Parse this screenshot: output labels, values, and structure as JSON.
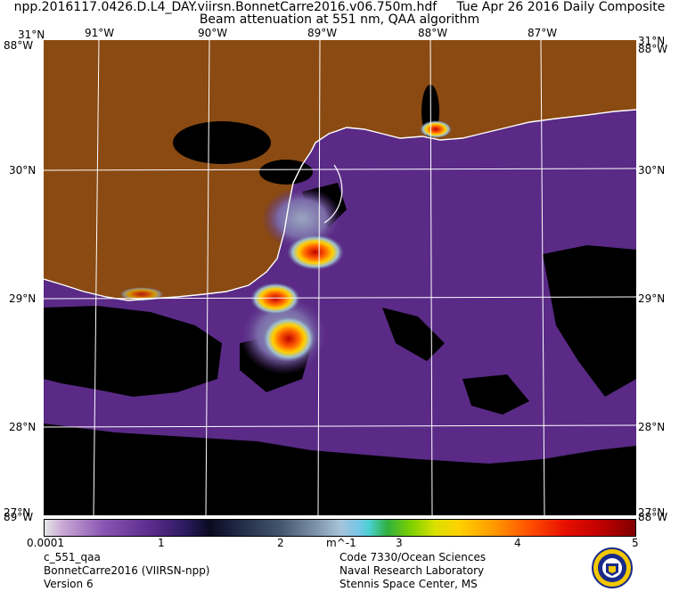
{
  "header": {
    "line1": "npp.2016117.0426.D.L4_DAY.viirsn.BonnetCarre2016.v06.750m.hdf     Tue Apr 26 2016 Daily Composite",
    "line2": "Beam attenuation at 551 nm, QAA algorithm"
  },
  "map": {
    "lon_labels": [
      "91°W",
      "90°W",
      "89°W",
      "88°W",
      "87°W"
    ],
    "lat_labels": [
      "30°N",
      "29°N",
      "28°N"
    ],
    "corner_labels": {
      "top_left_lat": "31°N",
      "top_left_lon": "88°W",
      "top_right_lat": "31°N",
      "top_right_lon": "88°W",
      "bottom_left_lat": "27°N",
      "bottom_left_lon": "89°W",
      "bottom_right_lat": "27°N",
      "bottom_right_lon": "88°W"
    },
    "colors": {
      "land": "#8a4a12",
      "water_clear": "#5a2a86",
      "cloud": "#000000",
      "turbid": "#ff4000"
    }
  },
  "colorbar": {
    "tick_labels": [
      "0.0001",
      "1",
      "2",
      "3",
      "4",
      "5"
    ],
    "unit": "m^-1"
  },
  "footer": {
    "left": [
      "c_551_qaa",
      "BonnetCarre2016 (VIIRSN-npp)",
      "Version 6"
    ],
    "right": [
      "Code 7330/Ocean Sciences",
      "Naval Research Laboratory",
      "Stennis Space Center, MS"
    ],
    "seal_icon": "navy-seal-icon"
  }
}
